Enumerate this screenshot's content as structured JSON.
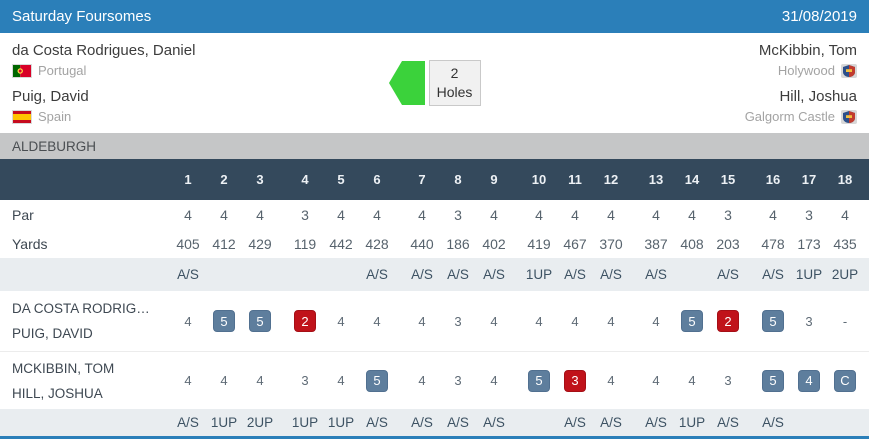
{
  "header": {
    "title": "Saturday Foursomes",
    "date": "31/08/2019"
  },
  "teams_panel": {
    "left": {
      "players": [
        {
          "name": "da Costa Rodrigues, Daniel",
          "affiliation": "Portugal",
          "icon": "portugal-flag"
        },
        {
          "name": "Puig, David",
          "affiliation": "Spain",
          "icon": "spain-flag"
        }
      ]
    },
    "right": {
      "players": [
        {
          "name": "McKibbin, Tom",
          "affiliation": "Holywood",
          "icon": "holywood-club-crest"
        },
        {
          "name": "Hill, Joshua",
          "affiliation": "Galgorm Castle",
          "icon": "galgorm-castle-club-crest"
        }
      ]
    },
    "result": {
      "value": "2",
      "unit": "Holes",
      "arrow_direction": "left"
    }
  },
  "course_bar": {
    "name": "ALDEBURGH"
  },
  "scorecard": {
    "row_labels": {
      "par": "Par",
      "yards": "Yards"
    },
    "holes": [
      "1",
      "2",
      "3",
      "4",
      "5",
      "6",
      "7",
      "8",
      "9",
      "10",
      "11",
      "12",
      "13",
      "14",
      "15",
      "16",
      "17",
      "18"
    ],
    "par": [
      "4",
      "4",
      "4",
      "3",
      "4",
      "4",
      "4",
      "3",
      "4",
      "4",
      "4",
      "4",
      "4",
      "4",
      "3",
      "4",
      "3",
      "4"
    ],
    "yards": [
      "405",
      "412",
      "429",
      "119",
      "442",
      "428",
      "440",
      "186",
      "402",
      "419",
      "467",
      "370",
      "387",
      "408",
      "203",
      "478",
      "173",
      "435"
    ],
    "status_top": [
      "A/S",
      "",
      "",
      "",
      "",
      "A/S",
      "A/S",
      "A/S",
      "A/S",
      "1UP",
      "A/S",
      "A/S",
      "A/S",
      "",
      "A/S",
      "A/S",
      "1UP",
      "2UP"
    ],
    "teams": [
      {
        "line1": "DA COSTA RODRIG…",
        "line2": "PUIG, DAVID",
        "scores": [
          {
            "v": "4",
            "s": "par"
          },
          {
            "v": "5",
            "s": "over_par"
          },
          {
            "v": "5",
            "s": "over_par"
          },
          {
            "v": "2",
            "s": "under_par"
          },
          {
            "v": "4",
            "s": "par"
          },
          {
            "v": "4",
            "s": "par"
          },
          {
            "v": "4",
            "s": "par"
          },
          {
            "v": "3",
            "s": "par"
          },
          {
            "v": "4",
            "s": "par"
          },
          {
            "v": "4",
            "s": "par"
          },
          {
            "v": "4",
            "s": "par"
          },
          {
            "v": "4",
            "s": "par"
          },
          {
            "v": "4",
            "s": "par"
          },
          {
            "v": "5",
            "s": "over_par"
          },
          {
            "v": "2",
            "s": "under_par"
          },
          {
            "v": "5",
            "s": "over_par"
          },
          {
            "v": "3",
            "s": "par"
          },
          {
            "v": "-",
            "s": "par"
          }
        ]
      },
      {
        "line1": "MCKIBBIN, TOM",
        "line2": "HILL, JOSHUA",
        "scores": [
          {
            "v": "4",
            "s": "par"
          },
          {
            "v": "4",
            "s": "par"
          },
          {
            "v": "4",
            "s": "par"
          },
          {
            "v": "3",
            "s": "par"
          },
          {
            "v": "4",
            "s": "par"
          },
          {
            "v": "5",
            "s": "over_par"
          },
          {
            "v": "4",
            "s": "par"
          },
          {
            "v": "3",
            "s": "par"
          },
          {
            "v": "4",
            "s": "par"
          },
          {
            "v": "5",
            "s": "over_par"
          },
          {
            "v": "3",
            "s": "under_par"
          },
          {
            "v": "4",
            "s": "par"
          },
          {
            "v": "4",
            "s": "par"
          },
          {
            "v": "4",
            "s": "par"
          },
          {
            "v": "3",
            "s": "par"
          },
          {
            "v": "5",
            "s": "over_par"
          },
          {
            "v": "4",
            "s": "over_par"
          },
          {
            "v": "C",
            "s": "over_par"
          }
        ]
      }
    ],
    "status_bottom": [
      "A/S",
      "1UP",
      "2UP",
      "1UP",
      "1UP",
      "A/S",
      "A/S",
      "A/S",
      "A/S",
      "",
      "A/S",
      "A/S",
      "A/S",
      "1UP",
      "A/S",
      "A/S",
      "",
      ""
    ]
  },
  "colors": {
    "header_bg": "#2b7fb9",
    "holes_bar_bg": "#34495c",
    "status_bg": "#e9edf0",
    "course_bar_bg": "#c5c6c7",
    "over_par_bg": "#5e7e9d",
    "under_par_bg": "#c0121a",
    "arrow_green": "#3bd23b"
  }
}
